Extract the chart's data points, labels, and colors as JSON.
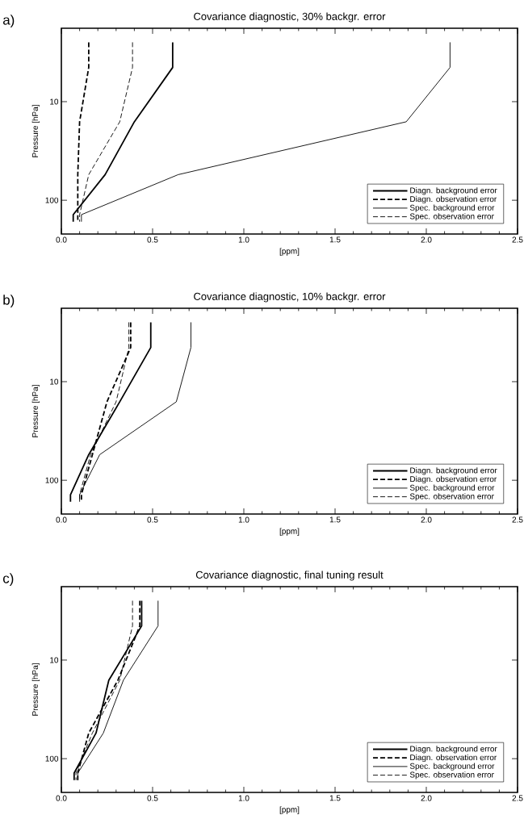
{
  "chart_data": [
    {
      "type": "line",
      "title": "Covariance diagnostic, 30% backgr. error",
      "xlabel": "[ppm]",
      "ylabel": "Pressure [hPa]",
      "annotations": [
        "a)"
      ],
      "log": "y",
      "xlim": [
        0,
        2.5
      ],
      "ylim": [
        220,
        1.8
      ],
      "xticks": [
        {
          "value": 0,
          "label": "0.0"
        },
        {
          "value": 0.5,
          "label": "0.5"
        },
        {
          "value": 1,
          "label": "1.0"
        },
        {
          "value": 1.5,
          "label": "1.5"
        },
        {
          "value": 2,
          "label": "2.0"
        },
        {
          "value": 2.5,
          "label": "2.5"
        }
      ],
      "yticks": [
        10,
        100
      ],
      "legend": "bottom right",
      "grid": false,
      "marker": "none",
      "series": [
        {
          "name": "Diagn. background error",
          "color": "#000000",
          "line_style": "solid",
          "x": [
            0.61,
            0.61,
            0.4,
            0.24,
            0.065,
            0.065
          ],
          "values": [
            2.5,
            4.5,
            16,
            55,
            140,
            165
          ]
        },
        {
          "name": "Diagn. observation error",
          "color": "#000000",
          "line_style": "dashed",
          "x": [
            0.15,
            0.15,
            0.1,
            0.09,
            0.09,
            0.09
          ],
          "values": [
            2.5,
            4.5,
            16,
            55,
            140,
            165
          ]
        },
        {
          "name": "Spec.  background error",
          "color": "#000000",
          "line_style": "solid",
          "x": [
            2.13,
            2.13,
            1.89,
            0.64,
            0.11,
            0.11
          ],
          "values": [
            2.5,
            4.5,
            16,
            55,
            140,
            165
          ]
        },
        {
          "name": "Spec.  observation error",
          "color": "#000000",
          "line_style": "dashed",
          "x": [
            0.39,
            0.39,
            0.32,
            0.15,
            0.1,
            0.1
          ],
          "values": [
            2.5,
            4.5,
            16,
            55,
            140,
            165
          ]
        }
      ]
    },
    {
      "type": "line",
      "title": "Covariance diagnostic, 10% backgr. error",
      "xlabel": "[ppm]",
      "ylabel": "Pressure [hPa]",
      "annotations": [
        "b)"
      ],
      "log": "y",
      "xlim": [
        0,
        2.5
      ],
      "ylim": [
        220,
        1.8
      ],
      "xticks": [
        {
          "value": 0,
          "label": "0.0"
        },
        {
          "value": 0.5,
          "label": "0.5"
        },
        {
          "value": 1,
          "label": "1.0"
        },
        {
          "value": 1.5,
          "label": "1.5"
        },
        {
          "value": 2,
          "label": "2.0"
        },
        {
          "value": 2.5,
          "label": "2.5"
        }
      ],
      "yticks": [
        10,
        100
      ],
      "legend": "bottom right",
      "grid": false,
      "marker": "none",
      "series": [
        {
          "name": "Diagn. background error",
          "color": "#000000",
          "line_style": "solid",
          "x": [
            0.49,
            0.49,
            0.32,
            0.15,
            0.05,
            0.05
          ],
          "values": [
            2.5,
            4.5,
            16,
            55,
            140,
            165
          ]
        },
        {
          "name": "Diagn. observation error",
          "color": "#000000",
          "line_style": "dashed",
          "x": [
            0.38,
            0.38,
            0.25,
            0.17,
            0.11,
            0.11
          ],
          "values": [
            2.5,
            4.5,
            16,
            55,
            140,
            165
          ]
        },
        {
          "name": "Spec.  background error",
          "color": "#000000",
          "line_style": "solid",
          "x": [
            0.71,
            0.71,
            0.63,
            0.21,
            0.1,
            0.1
          ],
          "values": [
            2.5,
            4.5,
            16,
            55,
            140,
            165
          ]
        },
        {
          "name": "Spec.  observation error",
          "color": "#000000",
          "line_style": "dashed",
          "x": [
            0.37,
            0.37,
            0.3,
            0.16,
            0.1,
            0.1
          ],
          "values": [
            2.5,
            4.5,
            16,
            55,
            140,
            165
          ]
        }
      ]
    },
    {
      "type": "line",
      "title": "Covariance diagnostic, final tuning result",
      "xlabel": "[ppm]",
      "ylabel": "Pressure [hPa]",
      "annotations": [
        "c)"
      ],
      "log": "y",
      "xlim": [
        0,
        2.5
      ],
      "ylim": [
        220,
        1.8
      ],
      "xticks": [
        {
          "value": 0,
          "label": "0.0"
        },
        {
          "value": 0.5,
          "label": "0.5"
        },
        {
          "value": 1,
          "label": "1.0"
        },
        {
          "value": 1.5,
          "label": "1.5"
        },
        {
          "value": 2,
          "label": "2.0"
        },
        {
          "value": 2.5,
          "label": "2.5"
        }
      ],
      "yticks": [
        10,
        100
      ],
      "legend": "bottom right",
      "grid": false,
      "marker": "none",
      "series": [
        {
          "name": "Diagn. background error",
          "color": "#000000",
          "line_style": "solid",
          "x": [
            0.44,
            0.44,
            0.26,
            0.19,
            0.07,
            0.07
          ],
          "values": [
            2.5,
            4.5,
            16,
            55,
            140,
            165
          ]
        },
        {
          "name": "Diagn. observation error",
          "color": "#000000",
          "line_style": "dashed",
          "x": [
            0.43,
            0.43,
            0.31,
            0.15,
            0.09,
            0.09
          ],
          "values": [
            2.5,
            4.5,
            16,
            55,
            140,
            165
          ]
        },
        {
          "name": "Spec.  background error",
          "color": "#000000",
          "line_style": "solid",
          "x": [
            0.53,
            0.53,
            0.34,
            0.23,
            0.09,
            0.09
          ],
          "values": [
            2.5,
            4.5,
            16,
            55,
            140,
            165
          ]
        },
        {
          "name": "Spec.  observation error",
          "color": "#000000",
          "line_style": "dashed",
          "x": [
            0.39,
            0.39,
            0.32,
            0.17,
            0.08,
            0.08
          ],
          "values": [
            2.5,
            4.5,
            16,
            55,
            140,
            165
          ]
        }
      ]
    }
  ]
}
